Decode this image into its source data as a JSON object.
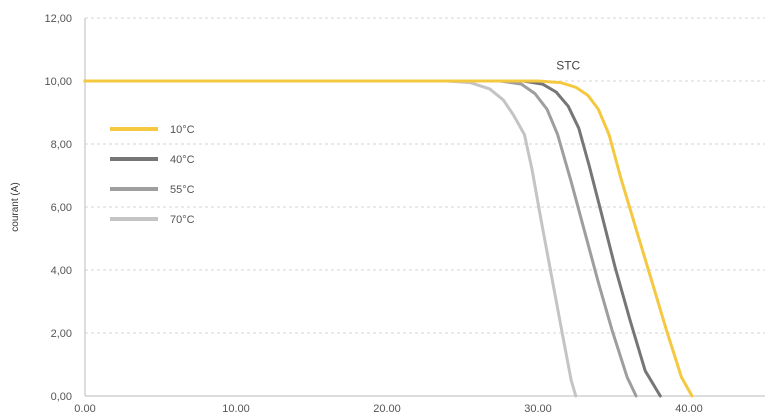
{
  "chart_data": {
    "type": "line",
    "title": "",
    "xlabel": "",
    "ylabel": "courant (A)",
    "xlim": [
      0,
      44
    ],
    "ylim": [
      0,
      12
    ],
    "x_ticks": [
      "0.00",
      "10.00",
      "20.00",
      "30.00",
      "40.00"
    ],
    "x_tick_values": [
      0,
      10,
      20,
      30,
      40
    ],
    "y_ticks": [
      "0,00",
      "2,00",
      "4,00",
      "6,00",
      "8,00",
      "10,00",
      "12,00"
    ],
    "y_tick_values": [
      0,
      2,
      4,
      6,
      8,
      10,
      12
    ],
    "grid": "horizontal dashed",
    "legend": "left",
    "annotation": {
      "text": "STC",
      "x": 32.0,
      "y": 10.3
    },
    "series": [
      {
        "name": "10°C",
        "color": "#f5c842",
        "x": [
          0,
          24,
          30,
          31.5,
          32.5,
          33.3,
          34,
          34.7,
          35.5,
          36.5,
          37.5,
          38.5,
          39.5,
          40.2
        ],
        "y": [
          10,
          10,
          10,
          9.95,
          9.8,
          9.55,
          9.1,
          8.3,
          6.9,
          5.3,
          3.7,
          2.1,
          0.6,
          0
        ]
      },
      {
        "name": "40°C",
        "color": "#767676",
        "x": [
          0,
          24,
          29,
          30.3,
          31.2,
          32,
          32.7,
          33.4,
          34.2,
          35.1,
          36.1,
          37.1,
          38.1
        ],
        "y": [
          10,
          10,
          10,
          9.9,
          9.65,
          9.2,
          8.5,
          7.3,
          5.8,
          4.1,
          2.4,
          0.8,
          0
        ]
      },
      {
        "name": "55°C",
        "color": "#9e9e9e",
        "x": [
          0,
          24,
          27.5,
          28.9,
          29.8,
          30.6,
          31.3,
          32.2,
          33.1,
          34,
          34.9,
          35.9,
          36.5
        ],
        "y": [
          10,
          10,
          10,
          9.9,
          9.6,
          9.1,
          8.3,
          6.8,
          5.2,
          3.6,
          2.1,
          0.6,
          0
        ]
      },
      {
        "name": "70°C",
        "color": "#c4c4c4",
        "x": [
          0,
          24,
          25.5,
          26.8,
          27.7,
          28.4,
          29.1,
          29.6,
          30.2,
          30.9,
          31.6,
          32.2,
          32.5
        ],
        "y": [
          10,
          10,
          9.95,
          9.75,
          9.4,
          8.9,
          8.3,
          7.2,
          5.6,
          3.8,
          2.0,
          0.5,
          0
        ]
      }
    ]
  }
}
